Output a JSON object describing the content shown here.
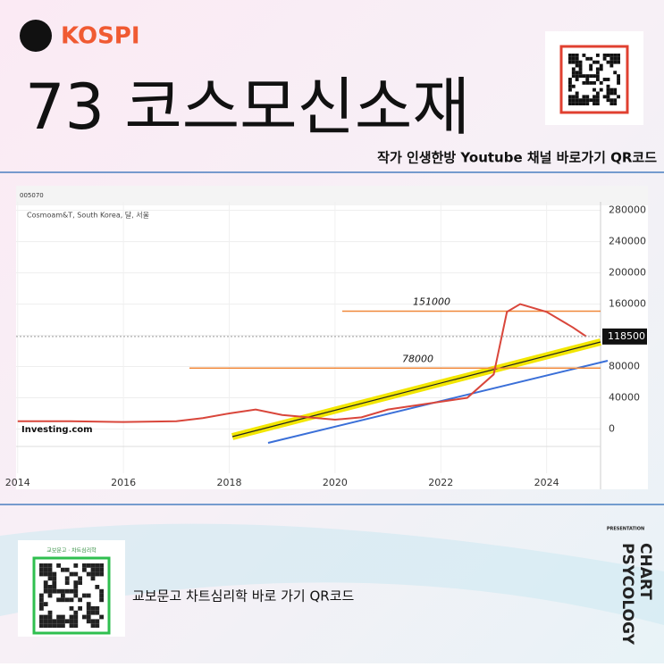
{
  "header": {
    "tag": "KOSPI",
    "title": "73 코스모신소재",
    "subtitle": "작가 인생한방 Youtube 채널 바로가기 QR코드"
  },
  "chart_data": {
    "type": "line",
    "symbol": "005070",
    "legend": "Cosmoam&T, South Korea, 달, 서울",
    "source": "Investing.com",
    "x": [
      2014,
      2015,
      2016,
      2017,
      2017.5,
      2018,
      2018.5,
      2019,
      2019.5,
      2020,
      2020.5,
      2021,
      2021.5,
      2022,
      2022.5,
      2023,
      2023.25,
      2023.5,
      2024,
      2024.5,
      2024.75
    ],
    "series": [
      {
        "color": "#d9463b",
        "values": [
          10000,
          10000,
          9000,
          10000,
          14000,
          20000,
          25000,
          18000,
          15000,
          12000,
          15000,
          25000,
          30000,
          35000,
          40000,
          70000,
          150000,
          160000,
          150000,
          130000,
          118500
        ]
      }
    ],
    "xlim": [
      2013.97,
      2025.02
    ],
    "xticks": [
      2014,
      2016,
      2018,
      2020,
      2022,
      2024
    ],
    "ylim": [
      -20000,
      291000
    ],
    "yticks": [
      0,
      40000,
      80000,
      120000,
      160000,
      200000,
      240000,
      280000
    ],
    "last_price": 118500,
    "levels": [
      151000,
      78000
    ],
    "level_color": "#f0883a"
  },
  "footer": {
    "qr_caption": "교보문고 · 차트심리학",
    "book_link": "교보문고 차트심리학 바로 가기 QR코드",
    "tag": "PRESENTATION",
    "brand_1": "CHART",
    "brand_2": "PSYCOLOGY"
  }
}
